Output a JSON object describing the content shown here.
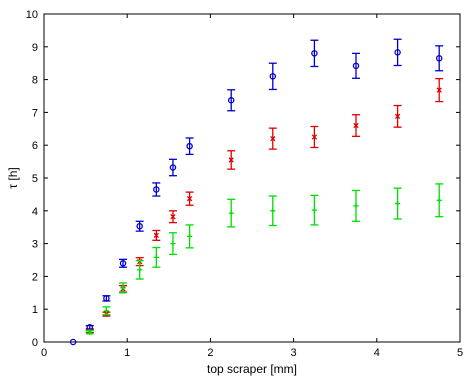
{
  "chart_data": {
    "type": "scatter",
    "title": "",
    "xlabel": "top scraper [mm]",
    "ylabel": "τ [h]",
    "xlim": [
      0,
      5
    ],
    "ylim": [
      0,
      10
    ],
    "xticks": [
      "0",
      "1",
      "2",
      "3",
      "4",
      "5"
    ],
    "yticks": [
      "0",
      "1",
      "2",
      "3",
      "4",
      "5",
      "6",
      "7",
      "8",
      "9",
      "10"
    ],
    "grid": false,
    "error_bars": true,
    "series": [
      {
        "marker": "circle",
        "color": "#0000cc",
        "points": [
          {
            "x": 0.35,
            "y": 0.0,
            "err": 0.0
          },
          {
            "x": 0.55,
            "y": 0.45,
            "err": 0.05
          },
          {
            "x": 0.75,
            "y": 1.33,
            "err": 0.08
          },
          {
            "x": 0.95,
            "y": 2.4,
            "err": 0.12
          },
          {
            "x": 1.15,
            "y": 3.53,
            "err": 0.15
          },
          {
            "x": 1.35,
            "y": 4.65,
            "err": 0.2
          },
          {
            "x": 1.55,
            "y": 5.32,
            "err": 0.25
          },
          {
            "x": 1.75,
            "y": 5.97,
            "err": 0.25
          },
          {
            "x": 2.25,
            "y": 7.37,
            "err": 0.32
          },
          {
            "x": 2.75,
            "y": 8.1,
            "err": 0.4
          },
          {
            "x": 3.25,
            "y": 8.8,
            "err": 0.4
          },
          {
            "x": 3.75,
            "y": 8.42,
            "err": 0.38
          },
          {
            "x": 4.25,
            "y": 8.83,
            "err": 0.4
          },
          {
            "x": 4.75,
            "y": 8.65,
            "err": 0.38
          }
        ]
      },
      {
        "marker": "x",
        "color": "#dd0000",
        "points": [
          {
            "x": 0.55,
            "y": 0.33,
            "err": 0.04
          },
          {
            "x": 0.75,
            "y": 0.85,
            "err": 0.06
          },
          {
            "x": 0.95,
            "y": 1.62,
            "err": 0.1
          },
          {
            "x": 1.15,
            "y": 2.45,
            "err": 0.12
          },
          {
            "x": 1.35,
            "y": 3.25,
            "err": 0.15
          },
          {
            "x": 1.55,
            "y": 3.82,
            "err": 0.18
          },
          {
            "x": 1.75,
            "y": 4.37,
            "err": 0.2
          },
          {
            "x": 2.25,
            "y": 5.55,
            "err": 0.28
          },
          {
            "x": 2.75,
            "y": 6.2,
            "err": 0.32
          },
          {
            "x": 3.25,
            "y": 6.25,
            "err": 0.32
          },
          {
            "x": 3.75,
            "y": 6.6,
            "err": 0.33
          },
          {
            "x": 4.25,
            "y": 6.88,
            "err": 0.33
          },
          {
            "x": 4.75,
            "y": 7.68,
            "err": 0.35
          }
        ]
      },
      {
        "marker": "plus",
        "color": "#00dd00",
        "points": [
          {
            "x": 0.55,
            "y": 0.3,
            "err": 0.05
          },
          {
            "x": 0.75,
            "y": 0.95,
            "err": 0.12
          },
          {
            "x": 0.95,
            "y": 1.65,
            "err": 0.15
          },
          {
            "x": 1.15,
            "y": 2.2,
            "err": 0.28
          },
          {
            "x": 1.35,
            "y": 2.58,
            "err": 0.3
          },
          {
            "x": 1.55,
            "y": 3.0,
            "err": 0.33
          },
          {
            "x": 1.75,
            "y": 3.22,
            "err": 0.35
          },
          {
            "x": 2.25,
            "y": 3.93,
            "err": 0.42
          },
          {
            "x": 2.75,
            "y": 4.0,
            "err": 0.45
          },
          {
            "x": 3.25,
            "y": 4.02,
            "err": 0.45
          },
          {
            "x": 3.75,
            "y": 4.15,
            "err": 0.47
          },
          {
            "x": 4.25,
            "y": 4.22,
            "err": 0.47
          },
          {
            "x": 4.75,
            "y": 4.32,
            "err": 0.5
          }
        ]
      }
    ]
  }
}
